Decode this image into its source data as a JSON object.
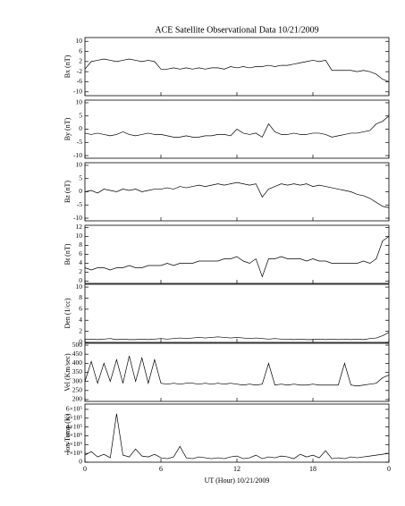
{
  "chart_data": [
    {
      "type": "line",
      "title": "ACE Satellite Observational Data   10/21/2009",
      "ylabel": "Bx (nT)",
      "color": "#000000",
      "x": [
        0,
        0.5,
        1,
        1.5,
        2,
        2.5,
        3,
        3.5,
        4,
        4.5,
        5,
        5.5,
        6,
        6.5,
        7,
        7.5,
        8,
        8.5,
        9,
        9.5,
        10,
        10.5,
        11,
        11.5,
        12,
        12.5,
        13,
        13.5,
        14,
        14.5,
        15,
        15.5,
        16,
        16.5,
        17,
        17.5,
        18,
        18.5,
        19,
        19.5,
        20,
        20.5,
        21,
        21.5,
        22,
        22.5,
        23,
        23.5,
        24
      ],
      "values": [
        -1,
        2,
        2.5,
        3,
        2.5,
        2,
        2.5,
        3,
        2.5,
        2,
        2.5,
        2,
        -1,
        -1,
        -0.5,
        -1,
        -0.5,
        -1,
        -0.5,
        -1,
        -0.5,
        -0.5,
        -1,
        0,
        -0.5,
        0,
        -0.5,
        0,
        0,
        0.5,
        0,
        0.5,
        0.5,
        1,
        1.5,
        2,
        2.5,
        2,
        2.5,
        -1.5,
        -1.5,
        -1.5,
        -1.5,
        -2,
        -1.5,
        -2,
        -3,
        -5,
        -6
      ],
      "xlim": [
        0,
        24
      ],
      "xticks": [
        0,
        6,
        12,
        18,
        24
      ],
      "ylim": [
        -11.5,
        11.5
      ],
      "yticks": [
        -10,
        -6,
        -2,
        2,
        6,
        10
      ]
    },
    {
      "type": "line",
      "ylabel": "By (nT)",
      "color": "#000000",
      "x": [
        0,
        0.5,
        1,
        1.5,
        2,
        2.5,
        3,
        3.5,
        4,
        4.5,
        5,
        5.5,
        6,
        6.5,
        7,
        7.5,
        8,
        8.5,
        9,
        9.5,
        10,
        10.5,
        11,
        11.5,
        12,
        12.5,
        13,
        13.5,
        14,
        14.5,
        15,
        15.5,
        16,
        16.5,
        17,
        17.5,
        18,
        18.5,
        19,
        19.5,
        20,
        20.5,
        21,
        21.5,
        22,
        22.5,
        23,
        23.5,
        24
      ],
      "values": [
        -1.5,
        -2,
        -1.5,
        -2,
        -2.5,
        -2,
        -1,
        -2,
        -2.5,
        -2,
        -1.5,
        -2,
        -2,
        -2.5,
        -3,
        -3,
        -2.5,
        -3,
        -3,
        -2.5,
        -2.5,
        -2,
        -2,
        -2.5,
        0,
        -1.5,
        -2,
        -1.5,
        -3,
        2,
        -1,
        -2,
        -2,
        -1.5,
        -2,
        -2,
        -1.5,
        -1.5,
        -2,
        -3,
        -2.5,
        -2,
        -1.5,
        -1.5,
        -1,
        -0.5,
        2,
        3,
        5
      ],
      "xlim": [
        0,
        24
      ],
      "xticks": [
        0,
        6,
        12,
        18,
        24
      ],
      "ylim": [
        -11,
        11
      ],
      "yticks": [
        -10,
        -5,
        0,
        5,
        10
      ]
    },
    {
      "type": "line",
      "ylabel": "Bz (nT)",
      "color": "#000000",
      "x": [
        0,
        0.5,
        1,
        1.5,
        2,
        2.5,
        3,
        3.5,
        4,
        4.5,
        5,
        5.5,
        6,
        6.5,
        7,
        7.5,
        8,
        8.5,
        9,
        9.5,
        10,
        10.5,
        11,
        11.5,
        12,
        12.5,
        13,
        13.5,
        14,
        14.5,
        15,
        15.5,
        16,
        16.5,
        17,
        17.5,
        18,
        18.5,
        19,
        19.5,
        20,
        20.5,
        21,
        21.5,
        22,
        22.5,
        23,
        23.5,
        24
      ],
      "values": [
        0,
        0.5,
        -0.5,
        1,
        0.5,
        0,
        1,
        0.5,
        1,
        0,
        0.5,
        1,
        1,
        1.5,
        1,
        2,
        1.5,
        2,
        2.5,
        2,
        2.5,
        3,
        2.5,
        3,
        3.5,
        3,
        2.5,
        3,
        -2,
        1,
        2,
        3,
        2.5,
        3,
        2.5,
        3,
        2,
        2.5,
        2,
        1.5,
        1,
        0.5,
        0,
        -1,
        -1.5,
        -2.5,
        -4,
        -5.5,
        -6
      ],
      "xlim": [
        0,
        24
      ],
      "xticks": [
        0,
        6,
        12,
        18,
        24
      ],
      "ylim": [
        -11,
        11
      ],
      "yticks": [
        -10,
        -5,
        0,
        5,
        10
      ]
    },
    {
      "type": "line",
      "ylabel": "Bt (nT)",
      "color": "#000000",
      "x": [
        0,
        0.5,
        1,
        1.5,
        2,
        2.5,
        3,
        3.5,
        4,
        4.5,
        5,
        5.5,
        6,
        6.5,
        7,
        7.5,
        8,
        8.5,
        9,
        9.5,
        10,
        10.5,
        11,
        11.5,
        12,
        12.5,
        13,
        13.5,
        14,
        14.5,
        15,
        15.5,
        16,
        16.5,
        17,
        17.5,
        18,
        18.5,
        19,
        19.5,
        20,
        20.5,
        21,
        21.5,
        22,
        22.5,
        23,
        23.5,
        24
      ],
      "values": [
        3,
        2.5,
        3,
        3,
        2.5,
        3,
        3,
        3.5,
        3,
        3,
        3.5,
        3.5,
        3.5,
        4,
        3.5,
        4,
        4,
        4,
        4.5,
        4.5,
        4.5,
        4.5,
        5,
        5,
        5.5,
        4.5,
        4,
        5,
        1,
        5,
        5,
        5.5,
        5,
        5,
        5,
        4.5,
        5,
        4.5,
        4.5,
        4,
        4,
        4,
        4,
        4,
        4.5,
        4,
        5,
        9,
        10
      ],
      "xlim": [
        0,
        24
      ],
      "xticks": [
        0,
        6,
        12,
        18,
        24
      ],
      "ylim": [
        -0.5,
        12.5
      ],
      "yticks": [
        0,
        2,
        4,
        6,
        8,
        10,
        12
      ]
    },
    {
      "type": "line",
      "ylabel": "Den (1/cc)",
      "color": "#000000",
      "x": [
        0,
        0.5,
        1,
        1.5,
        2,
        2.5,
        3,
        3.5,
        4,
        4.5,
        5,
        5.5,
        6,
        6.5,
        7,
        7.5,
        8,
        8.5,
        9,
        9.5,
        10,
        10.5,
        11,
        11.5,
        12,
        12.5,
        13,
        13.5,
        14,
        14.5,
        15,
        15.5,
        16,
        16.5,
        17,
        17.5,
        18,
        18.5,
        19,
        19.5,
        20,
        20.5,
        21,
        21.5,
        22,
        22.5,
        23,
        23.5,
        24
      ],
      "values": [
        0.5,
        0.6,
        0.5,
        0.6,
        0.7,
        0.5,
        0.6,
        0.5,
        0.5,
        0.6,
        0.5,
        0.6,
        0.7,
        0.6,
        0.7,
        0.8,
        0.7,
        0.8,
        0.9,
        0.8,
        0.9,
        1,
        0.9,
        0.8,
        0.9,
        0.8,
        0.7,
        0.8,
        0.7,
        0.6,
        0.7,
        0.6,
        0.6,
        0.5,
        0.6,
        0.5,
        0.5,
        0.6,
        0.5,
        0.6,
        0.5,
        0.6,
        0.5,
        0.6,
        0.5,
        0.7,
        0.8,
        1.2,
        1.8
      ],
      "xlim": [
        0,
        24
      ],
      "xticks": [
        0,
        6,
        12,
        18,
        24
      ],
      "ylim": [
        0,
        10.5
      ],
      "yticks": [
        0,
        2,
        4,
        6,
        8,
        10
      ]
    },
    {
      "type": "line",
      "ylabel": "Vel (Km/sec)",
      "color": "#000000",
      "x": [
        0,
        0.5,
        1,
        1.5,
        2,
        2.5,
        3,
        3.5,
        4,
        4.5,
        5,
        5.5,
        6,
        6.5,
        7,
        7.5,
        8,
        8.5,
        9,
        9.5,
        10,
        10.5,
        11,
        11.5,
        12,
        12.5,
        13,
        13.5,
        14,
        14.5,
        15,
        15.5,
        16,
        16.5,
        17,
        17.5,
        18,
        18.5,
        19,
        19.5,
        20,
        20.5,
        21,
        21.5,
        22,
        22.5,
        23,
        23.5,
        24
      ],
      "values": [
        300,
        410,
        290,
        400,
        300,
        420,
        290,
        440,
        300,
        430,
        290,
        420,
        290,
        285,
        290,
        285,
        290,
        290,
        285,
        290,
        285,
        290,
        285,
        290,
        285,
        280,
        285,
        280,
        285,
        400,
        280,
        285,
        280,
        285,
        280,
        280,
        285,
        280,
        280,
        280,
        280,
        400,
        280,
        275,
        280,
        285,
        290,
        320,
        335
      ],
      "xlim": [
        0,
        24
      ],
      "xticks": [
        0,
        6,
        12,
        18,
        24
      ],
      "ylim": [
        190,
        510
      ],
      "yticks": [
        200,
        250,
        300,
        350,
        400,
        450,
        500
      ]
    },
    {
      "type": "line",
      "ylabel": "Ion Temp (K)",
      "xlabel": "UT (Hour)   10/21/2009",
      "color": "#000000",
      "x": [
        0,
        0.5,
        1,
        1.5,
        2,
        2.5,
        3,
        3.5,
        4,
        4.5,
        5,
        5.5,
        6,
        6.5,
        7,
        7.5,
        8,
        8.5,
        9,
        9.5,
        10,
        10.5,
        11,
        11.5,
        12,
        12.5,
        13,
        13.5,
        14,
        14.5,
        15,
        15.5,
        16,
        16.5,
        17,
        17.5,
        18,
        18.5,
        19,
        19.5,
        20,
        20.5,
        21,
        21.5,
        22,
        22.5,
        23,
        23.5,
        24
      ],
      "values": [
        80000,
        120000,
        60000,
        90000,
        50000,
        550000,
        80000,
        60000,
        150000,
        70000,
        60000,
        90000,
        50000,
        40000,
        60000,
        180000,
        50000,
        40000,
        60000,
        50000,
        40000,
        50000,
        40000,
        60000,
        70000,
        40000,
        50000,
        80000,
        40000,
        60000,
        50000,
        70000,
        60000,
        40000,
        90000,
        60000,
        80000,
        50000,
        130000,
        40000,
        50000,
        40000,
        60000,
        50000,
        60000,
        70000,
        80000,
        90000,
        100000
      ],
      "xlim": [
        0,
        24
      ],
      "xticks": [
        0,
        6,
        12,
        18,
        {
          "value": 24,
          "label": "0"
        }
      ],
      "ylim": [
        0,
        660000
      ],
      "yticks": [
        0,
        {
          "value": 100000,
          "label": "1×10⁵"
        },
        {
          "value": 200000,
          "label": "2×10⁵"
        },
        {
          "value": 300000,
          "label": "3×10⁵"
        },
        {
          "value": 400000,
          "label": "4×10⁵"
        },
        {
          "value": 500000,
          "label": "5×10⁵"
        },
        {
          "value": 600000,
          "label": "6×10⁵"
        }
      ]
    }
  ]
}
